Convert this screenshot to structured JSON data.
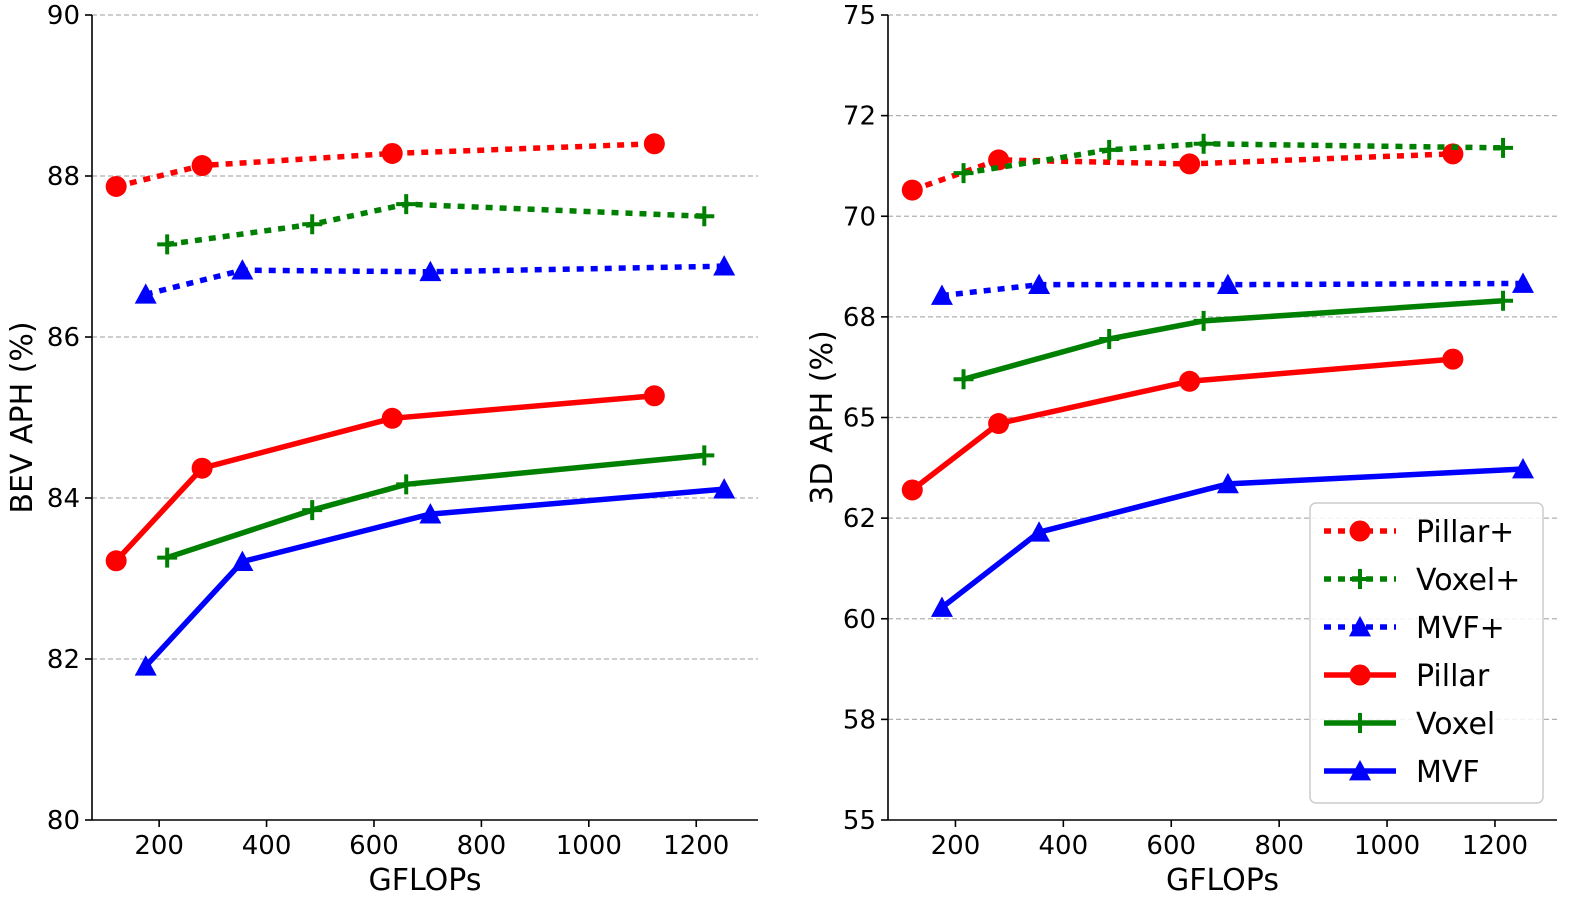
{
  "chart_data": [
    {
      "type": "line",
      "title": "",
      "xlabel": "GFLOPs",
      "ylabel": "BEV APH (%)",
      "xlim": [
        75,
        1315
      ],
      "ylim": [
        80,
        90
      ],
      "xticks": [
        200,
        400,
        600,
        800,
        1000,
        1200
      ],
      "xtick_labels": [
        "200",
        "400",
        "600",
        "800",
        "1000",
        "1200"
      ],
      "yticks": [
        80,
        82,
        84,
        86,
        88,
        90
      ],
      "ytick_labels": [
        "80",
        "82",
        "84",
        "86",
        "88",
        "90"
      ],
      "grid": "y-dashed",
      "series": [
        {
          "name": "Pillar+",
          "color": "#ff0000",
          "style": "dotted",
          "marker": "circle",
          "x": [
            120,
            280,
            634,
            1122
          ],
          "y": [
            87.87,
            88.13,
            88.28,
            88.4
          ]
        },
        {
          "name": "Voxel+",
          "color": "#008000",
          "style": "dotted",
          "marker": "plus",
          "x": [
            215,
            485,
            660,
            1215
          ],
          "y": [
            87.15,
            87.4,
            87.65,
            87.5
          ]
        },
        {
          "name": "MVF+",
          "color": "#0000ff",
          "style": "dotted",
          "marker": "triangle",
          "x": [
            175,
            355,
            705,
            1252
          ],
          "y": [
            86.53,
            86.83,
            86.81,
            86.88
          ]
        },
        {
          "name": "Pillar",
          "color": "#ff0000",
          "style": "solid",
          "marker": "circle",
          "x": [
            120,
            280,
            634,
            1122
          ],
          "y": [
            83.22,
            84.37,
            84.99,
            85.27
          ]
        },
        {
          "name": "Voxel",
          "color": "#008000",
          "style": "solid",
          "marker": "plus",
          "x": [
            215,
            485,
            660,
            1215
          ],
          "y": [
            83.26,
            83.85,
            84.17,
            84.53
          ]
        },
        {
          "name": "MVF",
          "color": "#0000ff",
          "style": "solid",
          "marker": "triangle",
          "x": [
            175,
            355,
            705,
            1252
          ],
          "y": [
            81.91,
            83.21,
            83.8,
            84.11
          ]
        }
      ]
    },
    {
      "type": "line",
      "title": "",
      "xlabel": "GFLOPs",
      "ylabel": "3D APH (%)",
      "xlim": [
        75,
        1315
      ],
      "ylim": [
        55,
        75
      ],
      "xticks": [
        200,
        400,
        600,
        800,
        1000,
        1200
      ],
      "xtick_labels": [
        "200",
        "400",
        "600",
        "800",
        "1000",
        "1200"
      ],
      "yticks": [
        55,
        57.5,
        60,
        62.5,
        65,
        67.5,
        70,
        72.5,
        75
      ],
      "ytick_labels": [
        "55",
        "58",
        "60",
        "62",
        "65",
        "68",
        "70",
        "72",
        "75"
      ],
      "grid": "y-dashed",
      "legend": {
        "location": "lower-right"
      },
      "series": [
        {
          "name": "Pillar+",
          "color": "#ff0000",
          "style": "dotted",
          "marker": "circle",
          "x": [
            120,
            280,
            634,
            1122
          ],
          "y": [
            70.65,
            71.4,
            71.3,
            71.55
          ]
        },
        {
          "name": "Voxel+",
          "color": "#008000",
          "style": "dotted",
          "marker": "plus",
          "x": [
            215,
            485,
            660,
            1215
          ],
          "y": [
            71.07,
            71.65,
            71.8,
            71.7
          ]
        },
        {
          "name": "MVF+",
          "color": "#0000ff",
          "style": "dotted",
          "marker": "triangle",
          "x": [
            175,
            355,
            705,
            1252
          ],
          "y": [
            68.03,
            68.3,
            68.3,
            68.33
          ]
        },
        {
          "name": "Pillar",
          "color": "#ff0000",
          "style": "solid",
          "marker": "circle",
          "x": [
            120,
            280,
            634,
            1122
          ],
          "y": [
            63.2,
            64.85,
            65.9,
            66.45
          ]
        },
        {
          "name": "Voxel",
          "color": "#008000",
          "style": "solid",
          "marker": "plus",
          "x": [
            215,
            485,
            660,
            1215
          ],
          "y": [
            65.95,
            66.95,
            67.4,
            67.9
          ]
        },
        {
          "name": "MVF",
          "color": "#0000ff",
          "style": "solid",
          "marker": "triangle",
          "x": [
            175,
            355,
            705,
            1252
          ],
          "y": [
            60.28,
            62.15,
            63.35,
            63.72
          ]
        }
      ]
    }
  ]
}
